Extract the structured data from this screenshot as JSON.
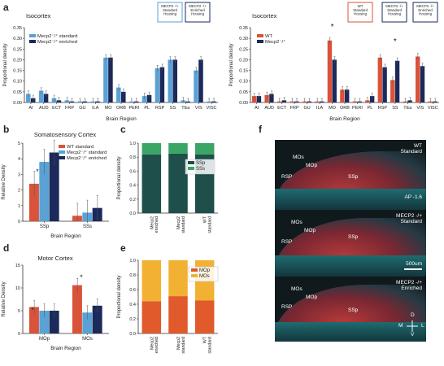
{
  "letters": {
    "a": "a",
    "b": "b",
    "c": "c",
    "d": "d",
    "e": "e",
    "f": "f"
  },
  "colors": {
    "wt": "#d9533a",
    "std": "#5aa2d6",
    "enr": "#1b2a5a",
    "ssp": "#1e4f4a",
    "sss": "#3aa565",
    "mop": "#e05a2c",
    "mos": "#f2b133"
  },
  "chart_data": [
    {
      "id": "a_left",
      "type": "bar",
      "title": "Isocortex",
      "xlabel": "Brain Region",
      "ylabel": "Proportional density",
      "ylim": [
        0,
        0.35
      ],
      "yticks": [
        "0.00",
        "0.05",
        "0.10",
        "0.15",
        "0.20",
        "0.25",
        "0.30",
        "0.35"
      ],
      "categories": [
        "AI",
        "AUD",
        "ECT",
        "FRP",
        "GU",
        "ILA",
        "MO",
        "ORB",
        "PERI",
        "PL",
        "RSP",
        "SS",
        "TEa",
        "VIS",
        "VISC"
      ],
      "series": [
        {
          "name": "Mecp2⁻/⁺ standard",
          "values": [
            0.04,
            0.055,
            0.02,
            0.01,
            0.005,
            0.005,
            0.21,
            0.07,
            0.005,
            0.03,
            0.16,
            0.2,
            0.01,
            0.15,
            0.005
          ]
        },
        {
          "name": "Mecp2⁻/⁺ enriched",
          "values": [
            0.02,
            0.04,
            0.01,
            0.005,
            0.005,
            0.005,
            0.21,
            0.05,
            0.005,
            0.035,
            0.165,
            0.2,
            0.005,
            0.2,
            0.005
          ]
        }
      ],
      "legend": "top-left",
      "housing": [
        "MECP2 -/+\nStandard\nHousing",
        "MECP2 -/+\nEnriched\nHousing"
      ]
    },
    {
      "id": "a_right",
      "type": "bar",
      "title": "Isocortex",
      "xlabel": "Brain Region",
      "ylabel": "Proportional density",
      "ylim": [
        0,
        0.35
      ],
      "yticks": [
        "0.00",
        "0.05",
        "0.10",
        "0.15",
        "0.20",
        "0.25",
        "0.30",
        "0.35"
      ],
      "categories": [
        "AI",
        "AUD",
        "ECT",
        "FRP",
        "GU",
        "ILA",
        "MO",
        "ORB",
        "PERI",
        "PL",
        "RSP",
        "SS",
        "TEa",
        "VIS",
        "VISC"
      ],
      "series": [
        {
          "name": "WT",
          "values": [
            0.03,
            0.035,
            0.005,
            0.005,
            0.005,
            0.005,
            0.29,
            0.06,
            0.005,
            0.01,
            0.21,
            0.105,
            0.005,
            0.215,
            0.005
          ]
        },
        {
          "name": "Mecp2⁻/⁺",
          "values": [
            0.03,
            0.04,
            0.01,
            0.005,
            0.005,
            0.005,
            0.2,
            0.06,
            0.005,
            0.03,
            0.165,
            0.195,
            0.01,
            0.17,
            0.005
          ]
        }
      ],
      "legend": "top-left",
      "stars": [
        "*",
        "*"
      ],
      "housing": [
        "WT\nStandard\nHousing",
        "MECP2 -/+\nStandard\nHousing",
        "MECP2 -/+\nEnriched\nHousing"
      ]
    },
    {
      "id": "b",
      "type": "bar",
      "title": "Somatosensory Cortex",
      "xlabel": "Brain Region",
      "ylabel": "Relative Density",
      "ylim": [
        0,
        5
      ],
      "yticks": [
        "0",
        "1",
        "2",
        "3",
        "4",
        "5"
      ],
      "categories": [
        "SSp",
        "SSs"
      ],
      "series": [
        {
          "name": "WT standard",
          "values": [
            2.4,
            0.35
          ]
        },
        {
          "name": "Mecp2⁻/⁺ standard",
          "values": [
            3.8,
            0.55
          ]
        },
        {
          "name": "Mecp2⁻/⁺ enriched",
          "values": [
            4.4,
            0.85
          ]
        }
      ],
      "legend": "top-right",
      "stars": [
        "*"
      ]
    },
    {
      "id": "c",
      "type": "bar",
      "stacked": true,
      "xlabel": "",
      "ylabel": "Proportional density",
      "ylim": [
        0,
        1.0
      ],
      "yticks": [
        "0.0",
        "0.2",
        "0.4",
        "0.6",
        "0.8",
        "1.0"
      ],
      "categories": [
        "Mecp2\nenriched",
        "Mecp2\nstandard",
        "WT\nstandard"
      ],
      "series": [
        {
          "name": "SSp",
          "values": [
            0.84,
            0.85,
            0.84
          ]
        },
        {
          "name": "SSs",
          "values": [
            0.16,
            0.15,
            0.16
          ]
        }
      ],
      "legend": "center-right"
    },
    {
      "id": "d",
      "type": "bar",
      "title": "Motor Cortex",
      "xlabel": "Brain Region",
      "ylabel": "Relative Density",
      "ylim": [
        0,
        15
      ],
      "yticks": [
        "0",
        "5",
        "10",
        "15"
      ],
      "categories": [
        "MOp",
        "MOs"
      ],
      "series": [
        {
          "name": "WT standard",
          "values": [
            5.8,
            10.6
          ]
        },
        {
          "name": "Mecp2⁻/⁺ standard",
          "values": [
            5.0,
            4.6
          ]
        },
        {
          "name": "Mecp2⁻/⁺ enriched",
          "values": [
            5.0,
            6.1
          ]
        }
      ],
      "stars": [
        "*",
        "*"
      ]
    },
    {
      "id": "e",
      "type": "bar",
      "stacked": true,
      "xlabel": "",
      "ylabel": "Proportional density",
      "ylim": [
        0,
        1.0
      ],
      "yticks": [
        "0.0",
        "0.2",
        "0.4",
        "0.6",
        "0.8",
        "1.0"
      ],
      "categories": [
        "Mecp2\nenriched",
        "Mecp2\nstandard",
        "WT\nstandard"
      ],
      "series": [
        {
          "name": "MOp",
          "values": [
            0.44,
            0.51,
            0.45
          ]
        },
        {
          "name": "MOs",
          "values": [
            0.56,
            0.49,
            0.55
          ]
        }
      ],
      "legend": "top-right"
    }
  ],
  "micro": [
    {
      "label": "WT\nStandard",
      "regions": [
        "MOs",
        "MOp",
        "RSP",
        "SSp"
      ],
      "extra": "AP -1.6"
    },
    {
      "label": "MECP2 -/+\nStandard",
      "regions": [
        "MOs",
        "MOp",
        "RSP",
        "SSp"
      ],
      "extra": "500um"
    },
    {
      "label": "MECP2 -/+\nEnriched",
      "regions": [
        "MOs",
        "MOp",
        "RSP",
        "SSp"
      ],
      "extra": ""
    }
  ],
  "compass": {
    "d": "D",
    "v": "V",
    "m": "M",
    "l": "L"
  }
}
